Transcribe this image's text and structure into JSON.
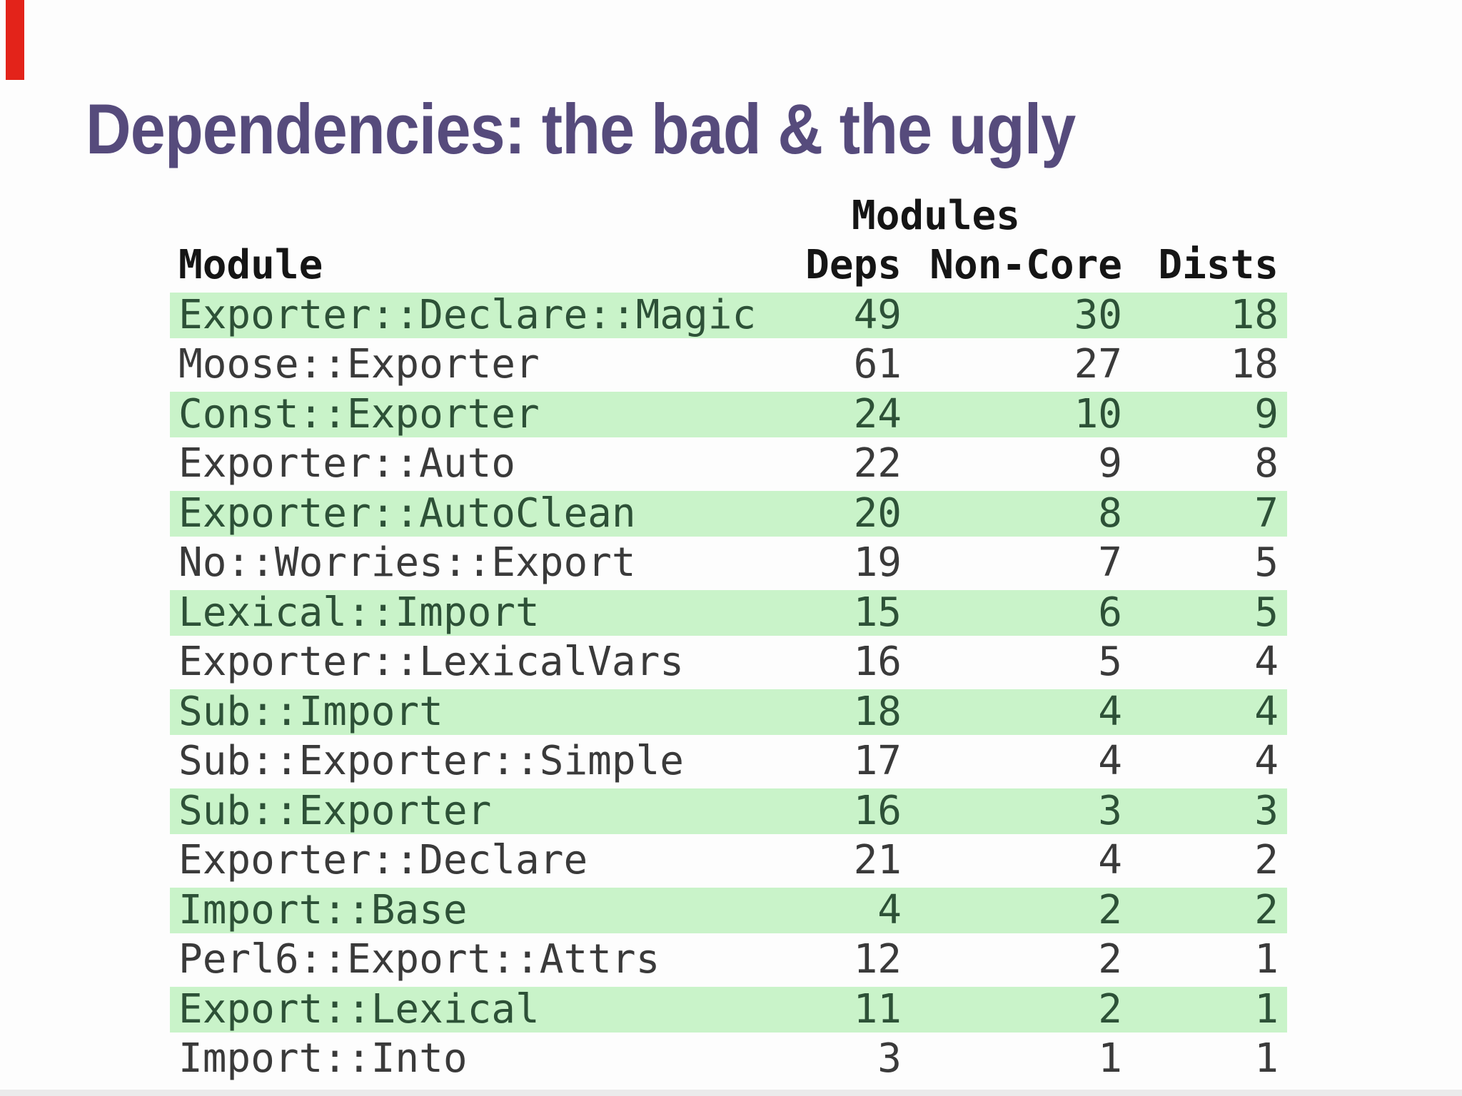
{
  "slide": {
    "title": "Dependencies: the bad & the ugly"
  },
  "table": {
    "group_header": "Modules",
    "columns": [
      "Module",
      "Deps",
      "Non-Core",
      "Dists"
    ],
    "rows": [
      {
        "module": "Exporter::Declare::Magic",
        "deps": 49,
        "non_core": 30,
        "dists": 18,
        "highlight": true
      },
      {
        "module": "Moose::Exporter",
        "deps": 61,
        "non_core": 27,
        "dists": 18,
        "highlight": false
      },
      {
        "module": "Const::Exporter",
        "deps": 24,
        "non_core": 10,
        "dists": 9,
        "highlight": true
      },
      {
        "module": "Exporter::Auto",
        "deps": 22,
        "non_core": 9,
        "dists": 8,
        "highlight": false
      },
      {
        "module": "Exporter::AutoClean",
        "deps": 20,
        "non_core": 8,
        "dists": 7,
        "highlight": true
      },
      {
        "module": "No::Worries::Export",
        "deps": 19,
        "non_core": 7,
        "dists": 5,
        "highlight": false
      },
      {
        "module": "Lexical::Import",
        "deps": 15,
        "non_core": 6,
        "dists": 5,
        "highlight": true
      },
      {
        "module": "Exporter::LexicalVars",
        "deps": 16,
        "non_core": 5,
        "dists": 4,
        "highlight": false
      },
      {
        "module": "Sub::Import",
        "deps": 18,
        "non_core": 4,
        "dists": 4,
        "highlight": true
      },
      {
        "module": "Sub::Exporter::Simple",
        "deps": 17,
        "non_core": 4,
        "dists": 4,
        "highlight": false
      },
      {
        "module": "Sub::Exporter",
        "deps": 16,
        "non_core": 3,
        "dists": 3,
        "highlight": true
      },
      {
        "module": "Exporter::Declare",
        "deps": 21,
        "non_core": 4,
        "dists": 2,
        "highlight": false
      },
      {
        "module": "Import::Base",
        "deps": 4,
        "non_core": 2,
        "dists": 2,
        "highlight": true
      },
      {
        "module": "Perl6::Export::Attrs",
        "deps": 12,
        "non_core": 2,
        "dists": 1,
        "highlight": false
      },
      {
        "module": "Export::Lexical",
        "deps": 11,
        "non_core": 2,
        "dists": 1,
        "highlight": true
      },
      {
        "module": "Import::Into",
        "deps": 3,
        "non_core": 1,
        "dists": 1,
        "highlight": false
      }
    ]
  },
  "colors": {
    "title": "#564b7c",
    "row_highlight": "#c9f3c9",
    "highlight_text": "#2d5137",
    "body_text": "#3a3a3a",
    "header_text": "#151515",
    "corner_marker": "#e3231a",
    "bottom_strip": "#ebebeb"
  }
}
